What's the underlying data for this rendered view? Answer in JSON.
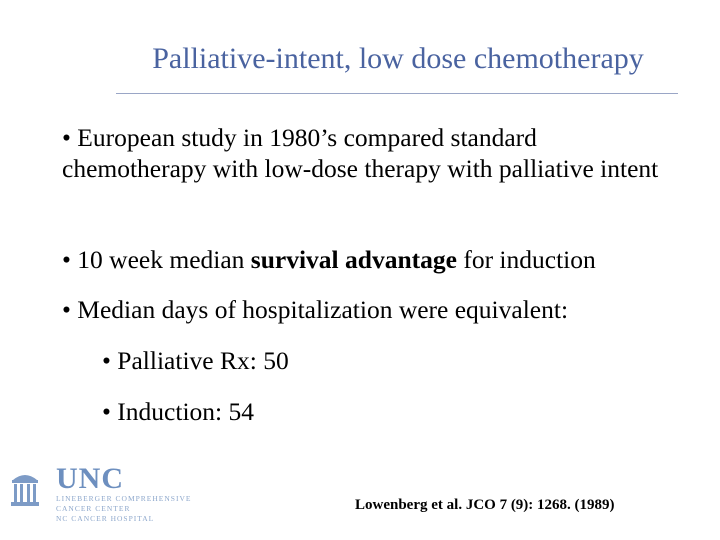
{
  "slide": {
    "title": "Palliative-intent, low dose chemotherapy",
    "bullets": [
      {
        "text": "• European study in 1980’s compared standard chemotherapy with low-dose therapy with palliative intent"
      },
      {
        "prefix": "• 10 week median ",
        "strong": "survival advantage",
        "suffix": " for induction"
      },
      {
        "text": "• Median days of hospitalization were equivalent:"
      }
    ],
    "sub_bullets": [
      "• Palliative Rx: 50",
      "• Induction: 54"
    ],
    "citation": "Lowenberg et al. JCO 7 (9): 1268. (1989)"
  },
  "logo": {
    "name": "UNC",
    "line1": "LINEBERGER COMPREHENSIVE",
    "line2": "CANCER CENTER",
    "line3": "NC CANCER HOSPITAL",
    "color": "#6d8fbf"
  }
}
